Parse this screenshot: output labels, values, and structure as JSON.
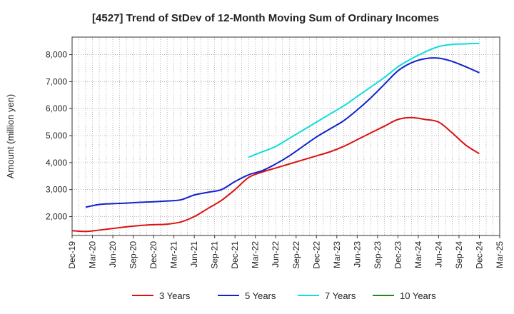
{
  "chart_data": {
    "type": "line",
    "title": "[4527]  Trend of StDev of 12-Month Moving Sum of Ordinary Incomes",
    "xlabel": "",
    "ylabel": "Amount (million yen)",
    "ylim": [
      1300,
      8650
    ],
    "yticks": [
      2000,
      3000,
      4000,
      5000,
      6000,
      7000,
      8000
    ],
    "ytick_labels": [
      "2,000",
      "3,000",
      "4,000",
      "5,000",
      "6,000",
      "7,000",
      "8,000"
    ],
    "xticks": [
      "Dec-19",
      "Mar-20",
      "Jun-20",
      "Sep-20",
      "Dec-20",
      "Mar-21",
      "Jun-21",
      "Sep-21",
      "Dec-21",
      "Mar-22",
      "Jun-22",
      "Sep-22",
      "Dec-22",
      "Mar-23",
      "Jun-23",
      "Sep-23",
      "Dec-23",
      "Mar-24",
      "Jun-24",
      "Sep-24",
      "Dec-24",
      "Mar-25"
    ],
    "grid": true,
    "legend_position": "bottom",
    "series": [
      {
        "name": "3 Years",
        "color": "#dd1111",
        "x": [
          "Dec-19",
          "Feb-20",
          "Apr-20",
          "Jun-20",
          "Aug-20",
          "Oct-20",
          "Dec-20",
          "Feb-21",
          "Apr-21",
          "Jun-21",
          "Aug-21",
          "Oct-21",
          "Dec-21",
          "Feb-22",
          "Apr-22",
          "Jun-22",
          "Aug-22",
          "Oct-22",
          "Dec-22",
          "Feb-23",
          "Apr-23",
          "Jun-23",
          "Aug-23",
          "Oct-23",
          "Dec-23",
          "Feb-24",
          "Apr-24",
          "Jun-24",
          "Aug-24",
          "Oct-24",
          "Dec-24"
        ],
        "values": [
          1480,
          1450,
          1500,
          1560,
          1620,
          1670,
          1700,
          1720,
          1800,
          2000,
          2300,
          2600,
          3000,
          3450,
          3650,
          3800,
          3950,
          4100,
          4250,
          4400,
          4600,
          4850,
          5100,
          5350,
          5600,
          5670,
          5600,
          5500,
          5100,
          4650,
          4330
        ]
      },
      {
        "name": "5 Years",
        "color": "#1122cc",
        "x": [
          "Feb-20",
          "Apr-20",
          "Jun-20",
          "Aug-20",
          "Oct-20",
          "Dec-20",
          "Feb-21",
          "Apr-21",
          "Jun-21",
          "Aug-21",
          "Oct-21",
          "Dec-21",
          "Feb-22",
          "Apr-22",
          "Jun-22",
          "Aug-22",
          "Oct-22",
          "Dec-22",
          "Feb-23",
          "Apr-23",
          "Jun-23",
          "Aug-23",
          "Oct-23",
          "Dec-23",
          "Feb-24",
          "Apr-24",
          "Jun-24",
          "Aug-24",
          "Oct-24",
          "Dec-24"
        ],
        "values": [
          2350,
          2450,
          2480,
          2500,
          2530,
          2550,
          2580,
          2620,
          2800,
          2900,
          3000,
          3300,
          3550,
          3700,
          3950,
          4250,
          4600,
          4950,
          5250,
          5550,
          5950,
          6400,
          6900,
          7400,
          7700,
          7850,
          7870,
          7750,
          7550,
          7330
        ]
      },
      {
        "name": "7 Years",
        "color": "#11dddd",
        "x": [
          "Feb-22",
          "Apr-22",
          "Jun-22",
          "Aug-22",
          "Oct-22",
          "Dec-22",
          "Feb-23",
          "Apr-23",
          "Jun-23",
          "Aug-23",
          "Oct-23",
          "Dec-23",
          "Feb-24",
          "Apr-24",
          "Jun-24",
          "Aug-24",
          "Oct-24",
          "Dec-24"
        ],
        "values": [
          4200,
          4400,
          4600,
          4900,
          5200,
          5500,
          5800,
          6100,
          6450,
          6800,
          7150,
          7550,
          7850,
          8100,
          8300,
          8380,
          8400,
          8420
        ]
      },
      {
        "name": "10 Years",
        "color": "#228822",
        "x": [],
        "values": []
      }
    ]
  }
}
